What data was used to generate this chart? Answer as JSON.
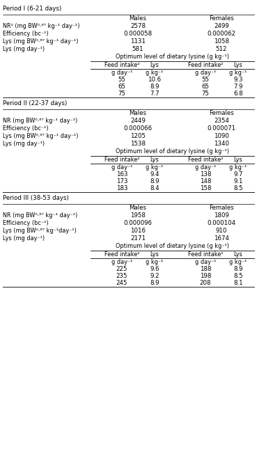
{
  "bg_color": "#ffffff",
  "font_size": 6.8,
  "font_size_small": 6.2,
  "periods": [
    {
      "label": "Period I (6-21 days)",
      "rows": [
        {
          "param": "NR¹ (mg BW⁰⋅⁶⁷ kg⁻¹ day⁻¹)",
          "male": "2578",
          "female": "2499"
        },
        {
          "param": "Efficiency (bc⁻¹)",
          "male": "0.000058",
          "female": "0.000062"
        },
        {
          "param": "Lys (mg BW⁰⋅⁶⁷ kg⁻¹ day⁻¹)",
          "male": "1131",
          "female": "1058"
        },
        {
          "param": "Lys (mg day⁻¹)",
          "male": "581",
          "female": "512"
        }
      ],
      "optimum_label": "Optimum level of dietary lysine (g kg⁻¹)",
      "col_headers": [
        "Feed intake²",
        "Lys",
        "Feed intake²",
        "Lys"
      ],
      "col_units": [
        "g day⁻¹",
        "g kg⁻¹",
        "g day⁻¹",
        "g kg⁻¹"
      ],
      "data_rows": [
        [
          "55",
          "10.6",
          "55",
          "9.3"
        ],
        [
          "65",
          "8.9",
          "65",
          "7.9"
        ],
        [
          "75",
          "7.7",
          "75",
          "6.8"
        ]
      ]
    },
    {
      "label": "Period II (22-37 days)",
      "rows": [
        {
          "param": "NR (mg BW⁰⋅⁶⁷ kg⁻¹ day⁻¹)",
          "male": "2449",
          "female": "2354"
        },
        {
          "param": "Efficiency (bc⁻¹)",
          "male": "0.000066",
          "female": "0.000071"
        },
        {
          "param": "Lys (mg BW⁰⋅⁶⁷ kg⁻¹ day⁻¹)",
          "male": "1205",
          "female": "1090"
        },
        {
          "param": "Lys (mg day⁻¹)",
          "male": "1538",
          "female": "1340"
        }
      ],
      "optimum_label": "Optimum level of dietary lysine (g kg⁻¹)",
      "col_headers": [
        "Feed intake²",
        "Lys",
        "Feed intake²",
        "Lys"
      ],
      "col_units": [
        "g day⁻¹",
        "g kg⁻¹",
        "g day⁻¹",
        "g kg⁻¹"
      ],
      "data_rows": [
        [
          "163",
          "9.4",
          "138",
          "9.7"
        ],
        [
          "173",
          "8.9",
          "148",
          "9.1"
        ],
        [
          "183",
          "8.4",
          "158",
          "8.5"
        ]
      ]
    },
    {
      "label": "Period III (38-53 days)",
      "rows": [
        {
          "param": "NR (mg BW⁰⋅⁶⁷ kg⁻¹ day⁻¹)",
          "male": "1958",
          "female": "1809"
        },
        {
          "param": "Efficiency (bc⁻¹)",
          "male": "0.000096",
          "female": "0.000104"
        },
        {
          "param": "Lys (mg BW⁰⋅⁶⁷ kg⁻¹day⁻¹)",
          "male": "1016",
          "female": "910"
        },
        {
          "param": "Lys (mg day⁻¹)",
          "male": "2171",
          "female": "1674"
        }
      ],
      "optimum_label": "Optimum level of dietary lysine (g kg⁻¹)",
      "col_headers": [
        "Feed intake²",
        "Lys",
        "Feed intake²",
        "Lys"
      ],
      "col_units": [
        "g day⁻¹",
        "g kg⁻¹",
        "g day⁻¹",
        "g kg⁻¹"
      ],
      "data_rows": [
        [
          "225",
          "9.6",
          "188",
          "8.9"
        ],
        [
          "235",
          "9.2",
          "198",
          "8.5"
        ],
        [
          "245",
          "8.9",
          "208",
          "8.1"
        ]
      ]
    }
  ]
}
